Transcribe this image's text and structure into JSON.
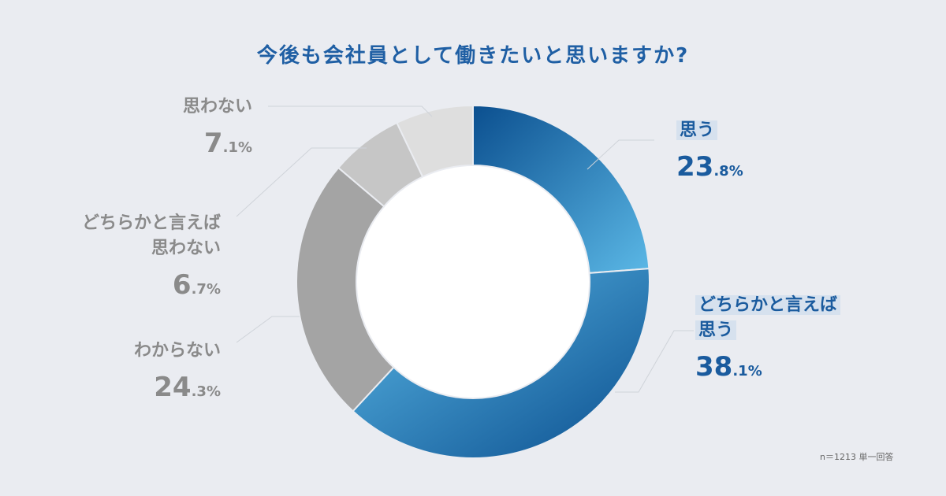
{
  "title": "今後も会社員として働きたいと思いますか?",
  "note": "n＝1213 単一回答",
  "colors": {
    "background": "#eaecf1",
    "title": "#1f5fa4",
    "blue_label": "#1a5b9e",
    "gray_label": "#8a8a8a"
  },
  "chart_data": {
    "type": "pie",
    "donut": true,
    "title": "今後も会社員として働きたいと思いますか?",
    "slices": [
      {
        "label": "思う",
        "value": 23.8,
        "display_int": "23",
        "display_dec": ".8%",
        "color_from": "#5bb8e6",
        "color_to": "#0b4f8f"
      },
      {
        "label": "どちらかと言えば思う",
        "value": 38.1,
        "display_int": "38",
        "display_dec": ".1%",
        "color_from": "#5bb8e6",
        "color_to": "#0b4f8f"
      },
      {
        "label": "わからない",
        "value": 24.3,
        "display_int": "24",
        "display_dec": ".3%",
        "color_from": "#a4a4a4",
        "color_to": "#a4a4a4"
      },
      {
        "label": "どちらかと言えば思わない",
        "value": 6.7,
        "display_int": "6",
        "display_dec": ".7%",
        "color_from": "#c6c6c6",
        "color_to": "#c6c6c6"
      },
      {
        "label": "思わない",
        "value": 7.1,
        "display_int": "7",
        "display_dec": ".1%",
        "color_from": "#dedede",
        "color_to": "#dedede"
      }
    ],
    "labels": {
      "s0_name": "思う",
      "s1_name_line1": "どちらかと言えば",
      "s1_name_line2": "思う",
      "s2_name": "わからない",
      "s3_name_line1": "どちらかと言えば",
      "s3_name_line2": "思わない",
      "s4_name": "思わない"
    }
  }
}
